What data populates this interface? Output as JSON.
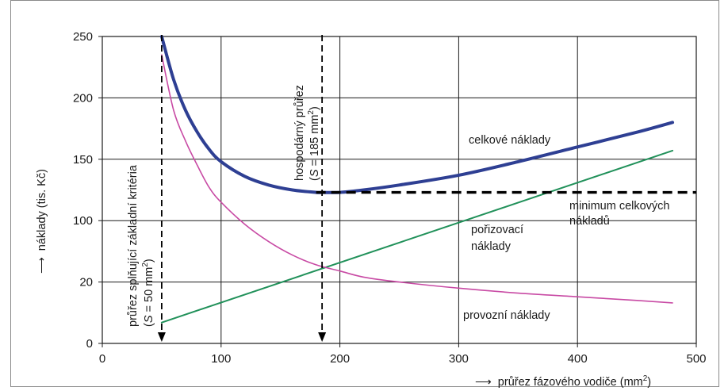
{
  "chart_data": {
    "type": "line",
    "xlabel_arrow": "⟶",
    "xlabel": "průřez fázového vodiče (mm",
    "xlabel_sup": "2",
    "xlabel_end": ")",
    "ylabel_arrow": "⟶",
    "ylabel": "náklady (tis. Kč)",
    "xlim": [
      0,
      500
    ],
    "ylim": [
      0,
      250
    ],
    "grid": true,
    "x_ticks": [
      "0",
      "100",
      "200",
      "300",
      "400",
      "500"
    ],
    "y_ticks": [
      "0",
      "20",
      "100",
      "150",
      "200",
      "250"
    ],
    "series": [
      {
        "name": "celkové náklady",
        "color": "#2e3f93",
        "x": [
          50,
          60,
          70,
          80,
          90,
          100,
          120,
          140,
          160,
          180,
          185,
          200,
          220,
          250,
          300,
          350,
          400,
          450,
          480
        ],
        "y": [
          250,
          215,
          190,
          172,
          158,
          148,
          136,
          129,
          125,
          123,
          123,
          123,
          125,
          129,
          137,
          148,
          160,
          172,
          180
        ]
      },
      {
        "name": "pořizovací náklady",
        "color": "#21915a",
        "x": [
          50,
          480
        ],
        "y": [
          17,
          157
        ]
      },
      {
        "name": "provozní náklady",
        "color": "#c84aa4",
        "x": [
          50,
          60,
          70,
          80,
          90,
          100,
          120,
          140,
          160,
          180,
          200,
          220,
          250,
          300,
          350,
          400,
          450,
          480
        ],
        "y": [
          235,
          190,
          165,
          145,
          127,
          115,
          97,
          83,
          72,
          64,
          59,
          54,
          50,
          45,
          41,
          38,
          35,
          33
        ]
      }
    ],
    "minimum_line": {
      "y": 123,
      "x_from": 180,
      "x_to": 500
    },
    "markers": [
      {
        "x": 50,
        "label": "průřez splňující základní kritéria",
        "formula_var": "S",
        "formula_rest": " = 50 mm",
        "formula_sup": "2",
        "formula_end": ")"
      },
      {
        "x": 185,
        "label": "hospodárný průřez",
        "formula_var": "S",
        "formula_rest": " = 185 mm",
        "formula_sup": "2",
        "formula_end": ")"
      }
    ],
    "annotations": {
      "celkove": "celkové náklady",
      "porizovaci_1": "pořizovací",
      "porizovaci_2": "náklady",
      "provozni": "provozní náklady",
      "minimum_1": "minimum celkových",
      "minimum_2": "nákladů"
    }
  }
}
